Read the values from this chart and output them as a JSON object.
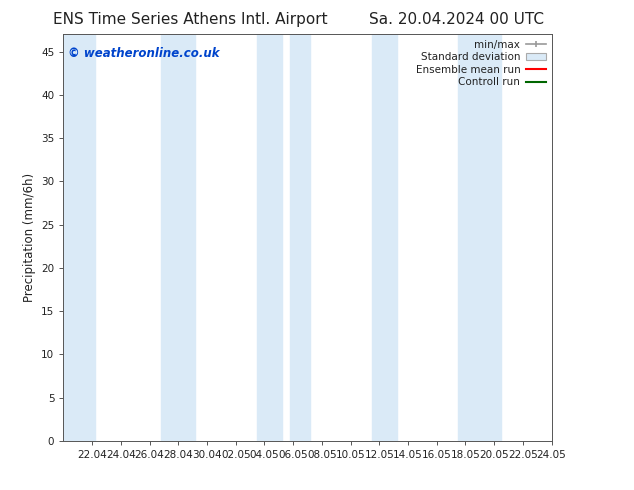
{
  "title_left": "ENS Time Series Athens Intl. Airport",
  "title_right": "Sa. 20.04.2024 00 UTC",
  "ylabel": "Precipitation (mm/6h)",
  "ylim": [
    0,
    47
  ],
  "yticks": [
    0,
    5,
    10,
    15,
    20,
    25,
    30,
    35,
    40,
    45
  ],
  "x_tick_labels": [
    "22.04",
    "24.04",
    "26.04",
    "28.04",
    "30.04",
    "02.05",
    "04.05",
    "06.05",
    "08.05",
    "10.05",
    "12.05",
    "14.05",
    "16.05",
    "18.05",
    "20.05",
    "22.05",
    "24.05"
  ],
  "watermark": "© weatheronline.co.uk",
  "watermark_color": "#0044cc",
  "bg_color": "#ffffff",
  "band_color": "#daeaf7",
  "legend_entries": [
    "min/max",
    "Standard deviation",
    "Ensemble mean run",
    "Controll run"
  ],
  "legend_line_colors": [
    "#999999",
    "#cccccc",
    "#ff0000",
    "#006600"
  ],
  "font_color": "#222222",
  "tick_label_size": 7.5,
  "title_fontsize": 11,
  "bands": [
    [
      0.0,
      2.2
    ],
    [
      6.8,
      9.2
    ],
    [
      13.5,
      15.2
    ],
    [
      15.8,
      17.2
    ],
    [
      21.5,
      23.2
    ],
    [
      27.5,
      30.5
    ]
  ],
  "xlim": [
    0,
    34
  ],
  "x_ticks": [
    2,
    4,
    6,
    8,
    10,
    12,
    14,
    16,
    18,
    20,
    22,
    24,
    26,
    28,
    30,
    32,
    34
  ]
}
